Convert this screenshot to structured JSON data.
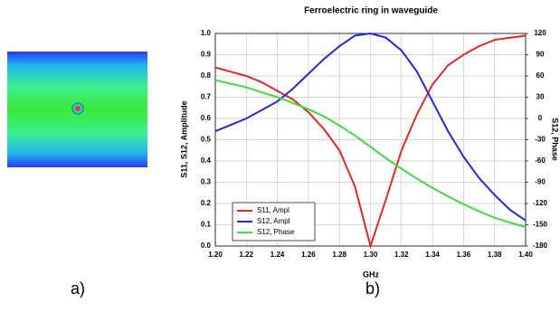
{
  "figure_labels": [
    "a)",
    "b)"
  ],
  "chart_data": {
    "type": "line",
    "title": "Ferroelectric ring in waveguide",
    "x_label": "GHz",
    "y_label": "S11, S12, Amplitude",
    "y2_label": "S12, Phase",
    "x": [
      1.2,
      1.21,
      1.22,
      1.23,
      1.24,
      1.25,
      1.26,
      1.27,
      1.28,
      1.29,
      1.3,
      1.31,
      1.32,
      1.33,
      1.34,
      1.35,
      1.36,
      1.37,
      1.38,
      1.39,
      1.4
    ],
    "xlim": [
      1.2,
      1.4
    ],
    "xticks": [
      {
        "value": 1.2,
        "label": "1.20"
      },
      {
        "value": 1.22,
        "label": "1.22"
      },
      {
        "value": 1.24,
        "label": "1.24"
      },
      {
        "value": 1.26,
        "label": "1.26"
      },
      {
        "value": 1.28,
        "label": "1.28"
      },
      {
        "value": 1.3,
        "label": "1.30"
      },
      {
        "value": 1.32,
        "label": "1.32"
      },
      {
        "value": 1.34,
        "label": "1.34"
      },
      {
        "value": 1.36,
        "label": "1.36"
      },
      {
        "value": 1.38,
        "label": "1.38"
      },
      {
        "value": 1.4,
        "label": "1.40"
      }
    ],
    "ylim": [
      0,
      1
    ],
    "yticks": [
      {
        "value": 0,
        "label": "0.0"
      },
      {
        "value": 0.1,
        "label": "0.1"
      },
      {
        "value": 0.2,
        "label": "0.2"
      },
      {
        "value": 0.3,
        "label": "0.3"
      },
      {
        "value": 0.4,
        "label": "0.4"
      },
      {
        "value": 0.5,
        "label": "0.5"
      },
      {
        "value": 0.6,
        "label": "0.6"
      },
      {
        "value": 0.7,
        "label": "0.7"
      },
      {
        "value": 0.8,
        "label": "0.8"
      },
      {
        "value": 0.9,
        "label": "0.9"
      },
      {
        "value": 1,
        "label": "1.0"
      }
    ],
    "y2lim": [
      -180,
      120
    ],
    "y2ticks": [
      -180,
      -150,
      -120,
      -90,
      -60,
      -30,
      0,
      30,
      60,
      90,
      120
    ],
    "grid": true,
    "legend": "lower-left",
    "series": [
      {
        "name": "S11, Ampl",
        "color": "#e32626",
        "values": [
          0.84,
          0.82,
          0.8,
          0.77,
          0.73,
          0.69,
          0.63,
          0.55,
          0.45,
          0.28,
          0.0,
          0.22,
          0.45,
          0.62,
          0.76,
          0.85,
          0.9,
          0.94,
          0.97,
          0.98,
          0.99
        ]
      },
      {
        "name": "S12, Ampl",
        "color": "#2626d6",
        "values": [
          0.54,
          0.57,
          0.6,
          0.64,
          0.68,
          0.74,
          0.81,
          0.88,
          0.94,
          0.99,
          1.0,
          0.98,
          0.92,
          0.82,
          0.68,
          0.54,
          0.42,
          0.32,
          0.24,
          0.17,
          0.12
        ]
      },
      {
        "name": "S12, Phase",
        "color": "#3ddc3d",
        "axis": "y2",
        "values": [
          54,
          49,
          44,
          37,
          30,
          22,
          13,
          3,
          -10,
          -24,
          -40,
          -56,
          -71,
          -85,
          -98,
          -110,
          -121,
          -131,
          -140,
          -147,
          -153
        ]
      }
    ]
  }
}
